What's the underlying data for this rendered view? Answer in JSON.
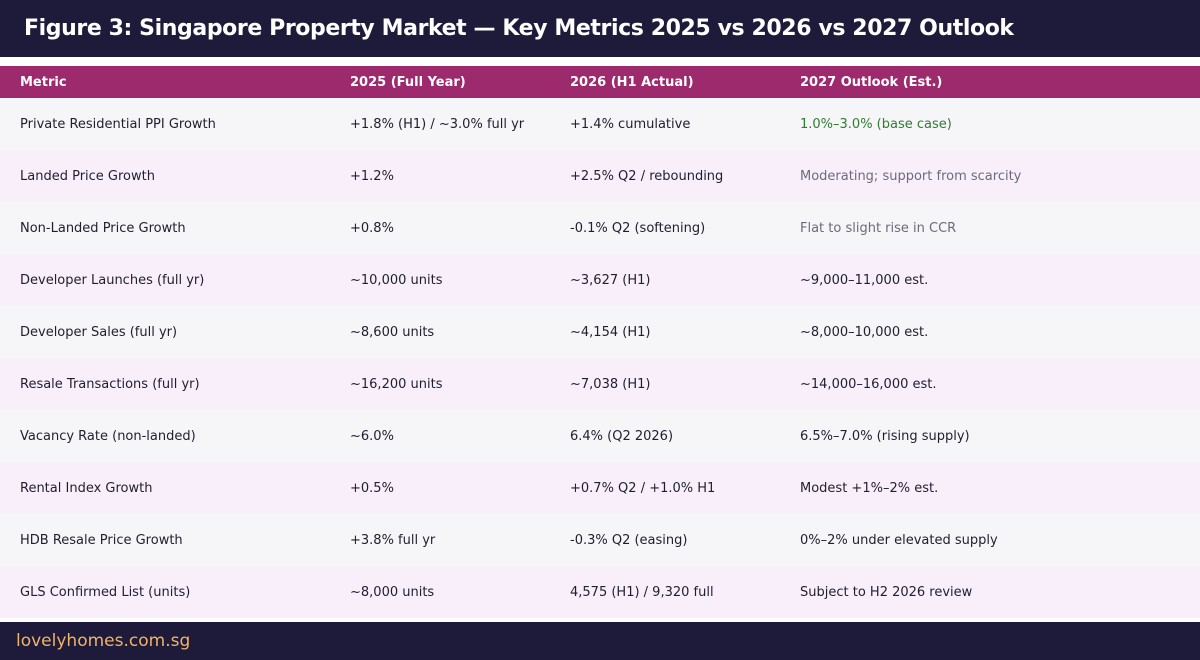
{
  "header": {
    "title": "Figure 3: Singapore Property Market — Key Metrics 2025 vs 2026 vs 2027 Outlook"
  },
  "table": {
    "columns": [
      "Metric",
      "2025 (Full Year)",
      "2026 (H1 Actual)",
      "2027 Outlook (Est.)"
    ],
    "rows": [
      {
        "metric": "Private Residential PPI Growth",
        "y2025": "+1.8% (H1) / ~3.0% full yr",
        "y2026": "+1.4% cumulative",
        "y2027": "1.0%–3.0% (base case)",
        "outlook_style": "green"
      },
      {
        "metric": "Landed Price Growth",
        "y2025": "+1.2%",
        "y2026": "+2.5% Q2 / rebounding",
        "y2027": "Moderating; support from scarcity",
        "outlook_style": "gray"
      },
      {
        "metric": "Non-Landed Price Growth",
        "y2025": "+0.8%",
        "y2026": "-0.1% Q2 (softening)",
        "y2027": "Flat to slight rise in CCR",
        "outlook_style": "gray"
      },
      {
        "metric": "Developer Launches (full yr)",
        "y2025": "~10,000 units",
        "y2026": "~3,627 (H1)",
        "y2027": "~9,000–11,000 est.",
        "outlook_style": "normal"
      },
      {
        "metric": "Developer Sales (full yr)",
        "y2025": "~8,600 units",
        "y2026": "~4,154 (H1)",
        "y2027": "~8,000–10,000 est.",
        "outlook_style": "normal"
      },
      {
        "metric": "Resale Transactions (full yr)",
        "y2025": "~16,200 units",
        "y2026": "~7,038 (H1)",
        "y2027": "~14,000–16,000 est.",
        "outlook_style": "normal"
      },
      {
        "metric": "Vacancy Rate (non-landed)",
        "y2025": "~6.0%",
        "y2026": "6.4% (Q2 2026)",
        "y2027": "6.5%–7.0% (rising supply)",
        "outlook_style": "normal"
      },
      {
        "metric": "Rental Index Growth",
        "y2025": "+0.5%",
        "y2026": "+0.7% Q2 / +1.0% H1",
        "y2027": "Modest +1%–2% est.",
        "outlook_style": "normal"
      },
      {
        "metric": "HDB Resale Price Growth",
        "y2025": "+3.8% full yr",
        "y2026": "-0.3% Q2 (easing)",
        "y2027": "0%–2% under elevated supply",
        "outlook_style": "normal"
      },
      {
        "metric": "GLS Confirmed List (units)",
        "y2025": "~8,000 units",
        "y2026": "4,575 (H1) / 9,320 full",
        "y2027": "Subject to H2 2026 review",
        "outlook_style": "normal"
      }
    ]
  },
  "footer": {
    "site": "lovelyhomes.com.sg"
  },
  "colors": {
    "title_bg": "#1e1a3a",
    "header_bg": "#9e2a6e",
    "row_odd": "#f6f5f8",
    "row_even": "#f8effa",
    "footer_text": "#f0b36a",
    "green_text": "#2e7d32",
    "gray_text": "#6b6b7a"
  }
}
